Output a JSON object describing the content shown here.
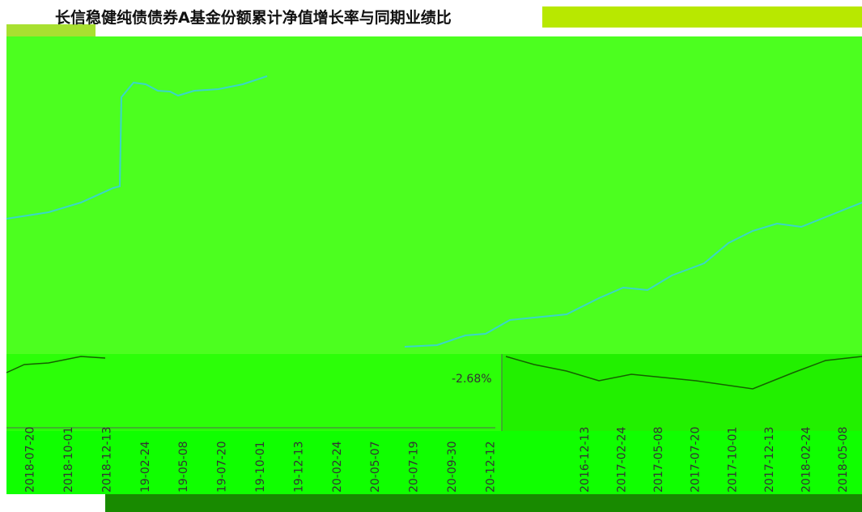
{
  "title": "长信稳健纯债债券A基金份额累计净值增长率与同期业绩比",
  "annotation": "-2.68%",
  "left_dates": [
    "2018-07-20",
    "2018-10-01",
    "2018-12-13",
    "19-02-24",
    "19-05-08",
    "19-07-20",
    "19-10-01",
    "19-12-13",
    "20-02-24",
    "20-05-07",
    "20-07-19",
    "20-09-30",
    "20-12-12"
  ],
  "right_dates": [
    "2016-12-13",
    "2017-02-24",
    "2017-05-08",
    "2017-07-20",
    "2017-10-01",
    "2017-12-13",
    "2018-02-24",
    "2018-05-08"
  ]
}
